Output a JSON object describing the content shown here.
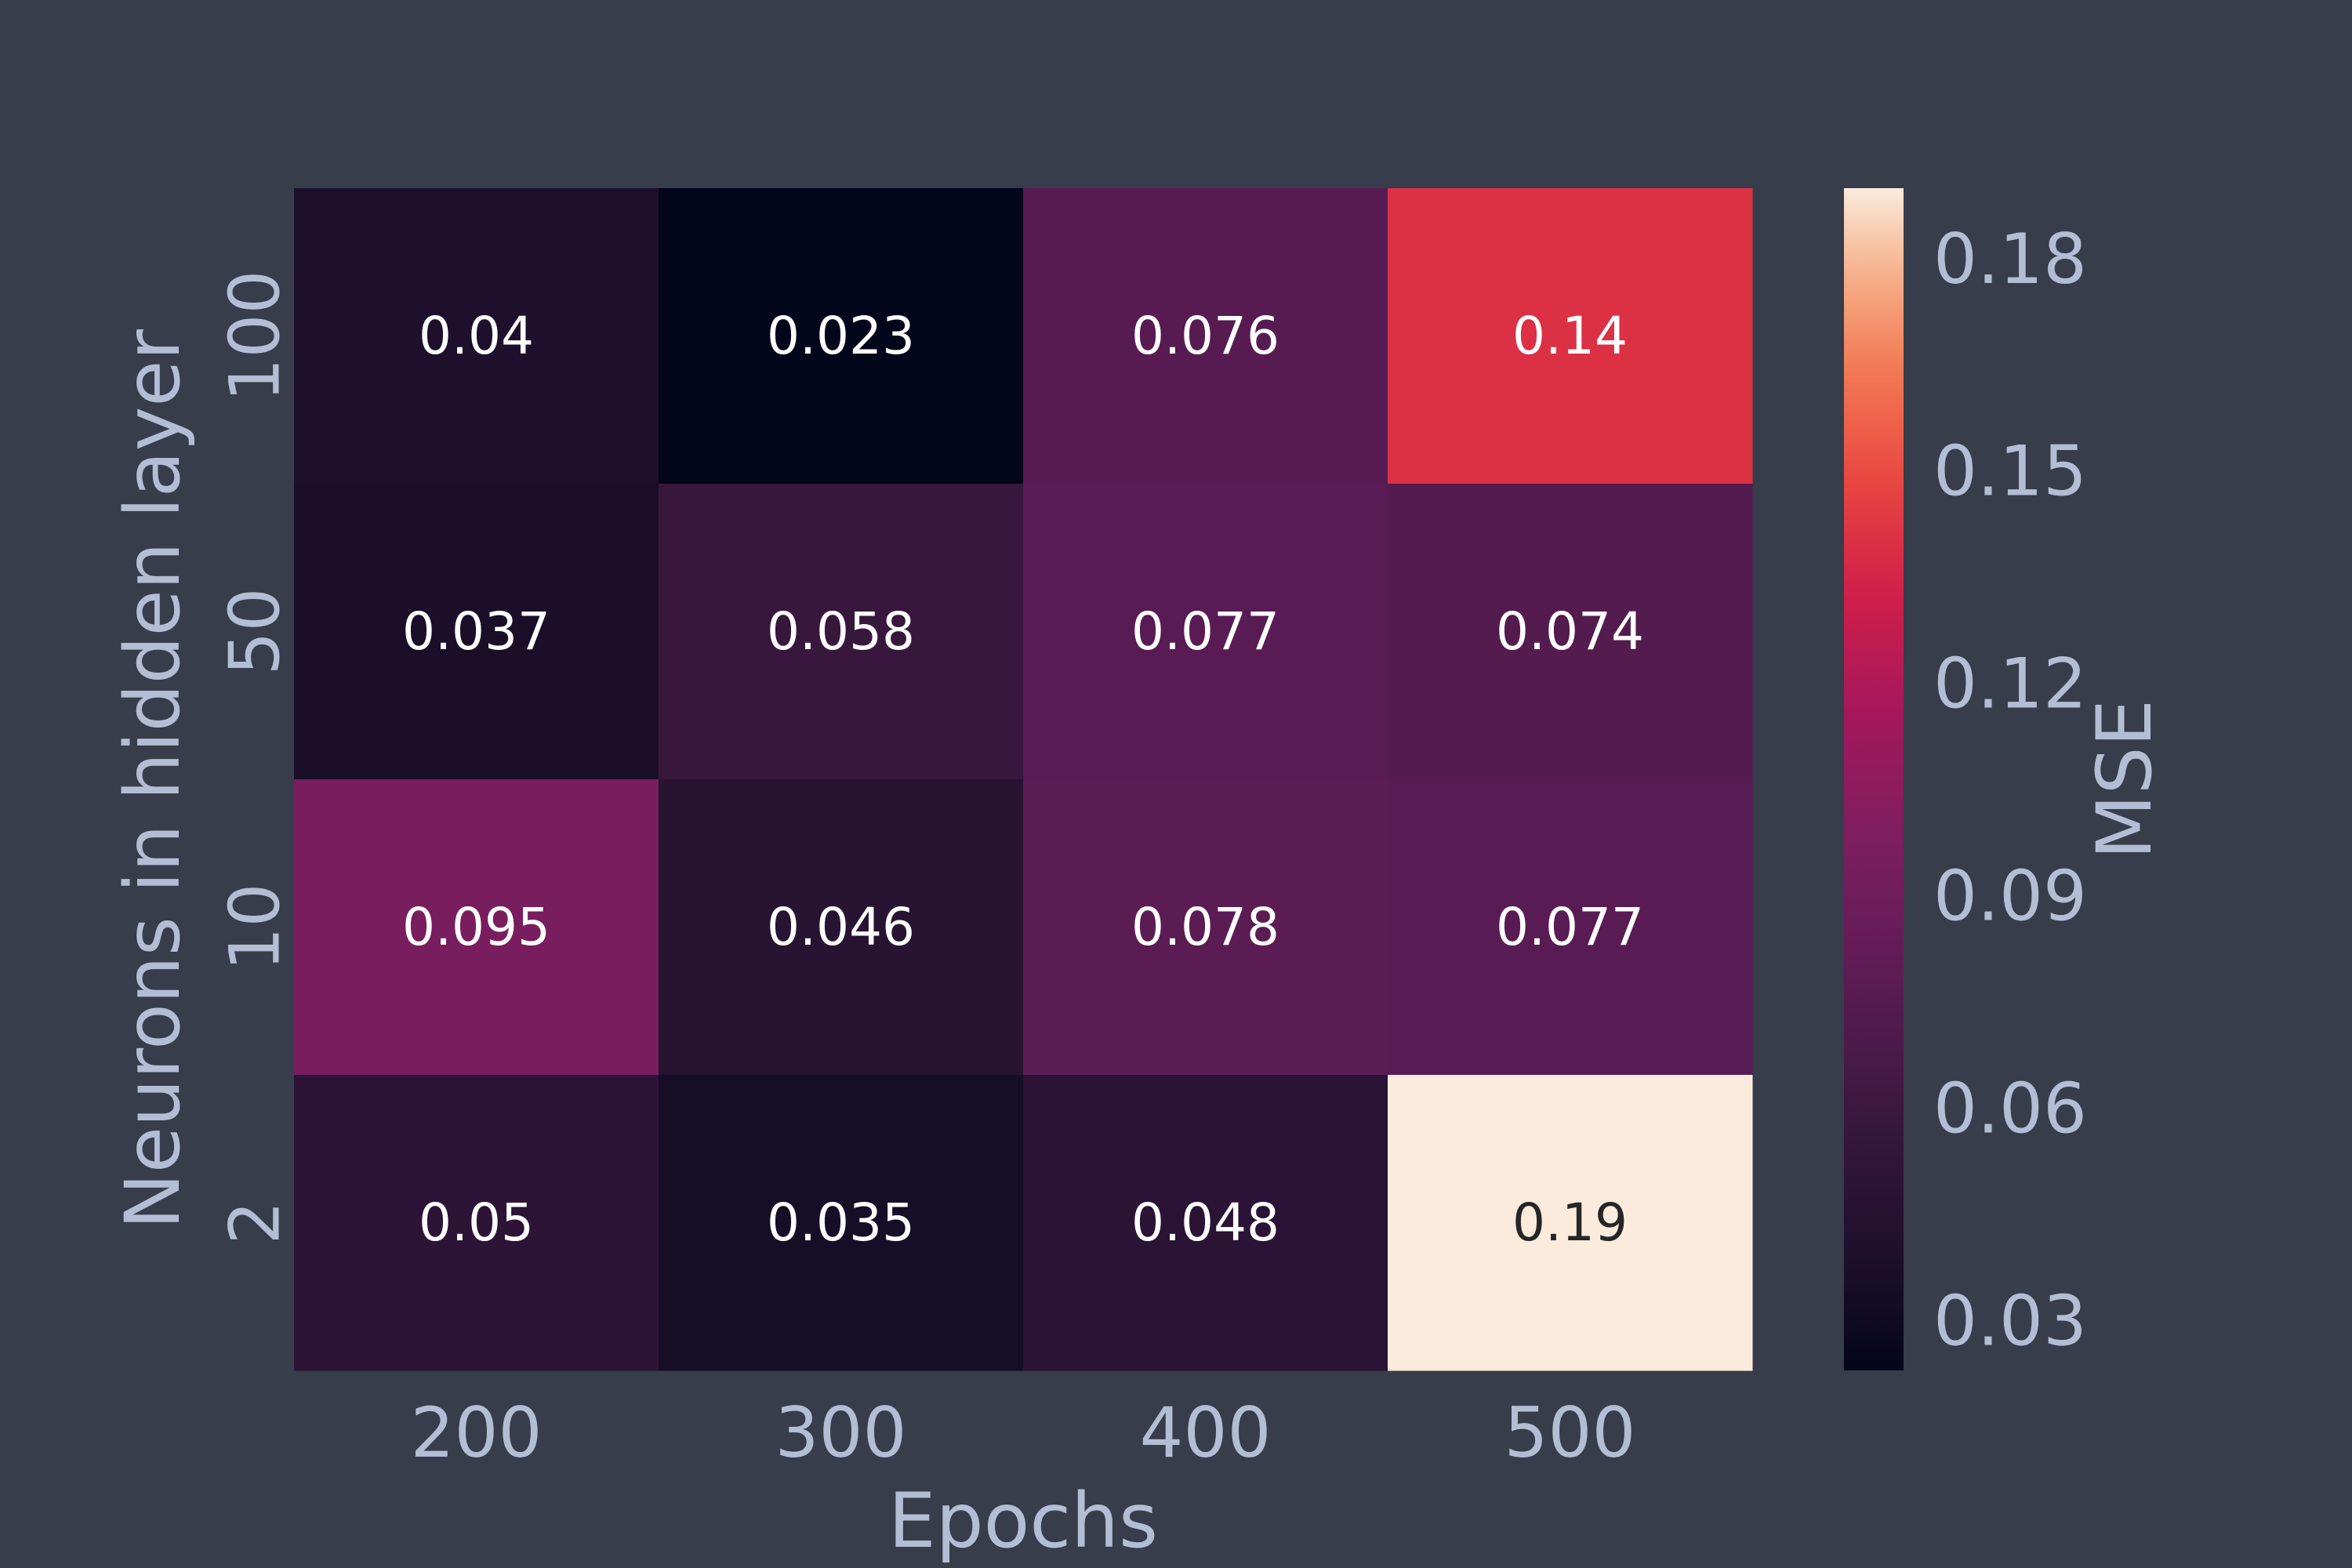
{
  "chart_data": {
    "type": "heatmap",
    "x": [
      "200",
      "300",
      "400",
      "500"
    ],
    "y": [
      "100",
      "50",
      "10",
      "2"
    ],
    "values": [
      [
        0.04,
        0.023,
        0.076,
        0.14
      ],
      [
        0.037,
        0.058,
        0.077,
        0.074
      ],
      [
        0.095,
        0.046,
        0.078,
        0.077
      ],
      [
        0.05,
        0.035,
        0.048,
        0.19
      ]
    ],
    "cell_labels": [
      [
        "0.04",
        "0.023",
        "0.076",
        "0.14"
      ],
      [
        "0.037",
        "0.058",
        "0.077",
        "0.074"
      ],
      [
        "0.095",
        "0.046",
        "0.078",
        "0.077"
      ],
      [
        "0.05",
        "0.035",
        "0.048",
        "0.19"
      ]
    ],
    "xlabel": "Epochs",
    "ylabel": "Neurons in hidden layer",
    "colorbar": {
      "label": "MSE",
      "range": [
        0.023,
        0.19
      ],
      "ticks": [
        "0.03",
        "0.06",
        "0.09",
        "0.12",
        "0.15",
        "0.18"
      ],
      "colormap": "rocket"
    },
    "background": "#373d4a",
    "text_color": "#b3bdd4"
  }
}
